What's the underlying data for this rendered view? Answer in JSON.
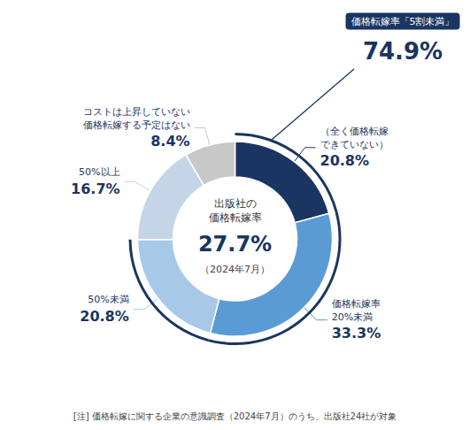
{
  "chart_data": {
    "type": "pie",
    "categories": [
      "（全く価格転嫁\nできていない）",
      "価格転嫁率\n20%未満",
      "50%未満",
      "50%以上",
      "コストは上昇していない\n価格転嫁する予定はない"
    ],
    "values": [
      20.8,
      33.3,
      20.8,
      16.7,
      8.4
    ],
    "value_labels": [
      "20.8%",
      "33.3%",
      "20.8%",
      "16.7%",
      "8.4%"
    ],
    "colors": [
      "#1a3561",
      "#5b9bd5",
      "#a8c8e8",
      "#c5d5e8",
      "#c8c8c8"
    ],
    "data_labels": true,
    "center_text": [
      "出版社の\n価格転嫁率",
      "27.7%",
      "（2024年7月）"
    ],
    "bracket": {
      "slices": [
        0,
        1,
        2
      ],
      "label": "価格転嫁率「5割未満」",
      "value_label": "74.9%",
      "color": "#1a3561"
    },
    "note": "[注] 価格転嫁に関する企業の意識調査（2024年7月）のうち、出版社24社が対象"
  }
}
